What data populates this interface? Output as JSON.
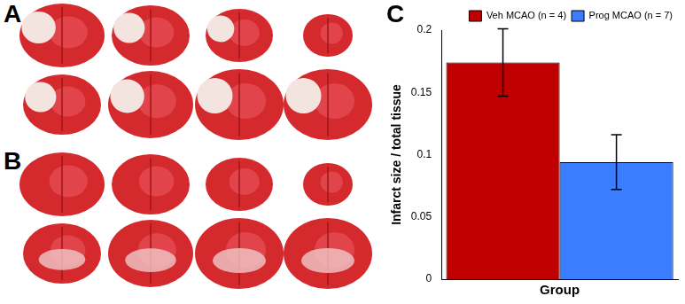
{
  "panel_labels": [
    "A",
    "B",
    "C"
  ],
  "chart_data": {
    "type": "bar",
    "x_label": "Group",
    "y_label": "Infarct size / total tissue",
    "categories": [
      null
    ],
    "series": [
      {
        "name": "Veh MCAO (n = 4)",
        "color": "#c00000",
        "values": [
          0.174
        ],
        "errors": [
          0.027
        ]
      },
      {
        "name": "Prog MCAO (n = 7)",
        "color": "#3a7dff",
        "values": [
          0.094
        ],
        "errors": [
          0.022
        ]
      }
    ],
    "ylim": [
      0,
      0.2
    ],
    "yticks": [
      0,
      0.05,
      0.1,
      0.15,
      0.2
    ],
    "grid": false,
    "legend": "top-right",
    "tick_labels": "y"
  }
}
